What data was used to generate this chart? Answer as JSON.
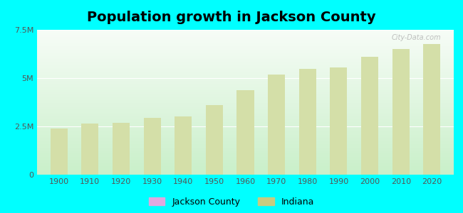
{
  "title": "Population growth in Jackson County",
  "years": [
    1900,
    1910,
    1920,
    1930,
    1940,
    1950,
    1960,
    1970,
    1980,
    1990,
    2000,
    2010,
    2020
  ],
  "indiana_values": [
    2400000,
    2650000,
    2700000,
    2930000,
    3000000,
    3600000,
    4380000,
    5200000,
    5490000,
    5540000,
    6100000,
    6500000,
    6750000
  ],
  "bar_color_light": "#d4dfa8",
  "bar_color_dark": "#b8c880",
  "jackson_color": "#e0a8e0",
  "indiana_color": "#c8cc80",
  "ylim": [
    0,
    7500000
  ],
  "yticks": [
    0,
    2500000,
    5000000,
    7500000
  ],
  "ytick_labels": [
    "0",
    "2.5M",
    "5M",
    "7.5M"
  ],
  "background_outer": "#00FFFF",
  "watermark": "City-Data.com",
  "title_fontsize": 14,
  "tick_fontsize": 8,
  "legend_fontsize": 9
}
